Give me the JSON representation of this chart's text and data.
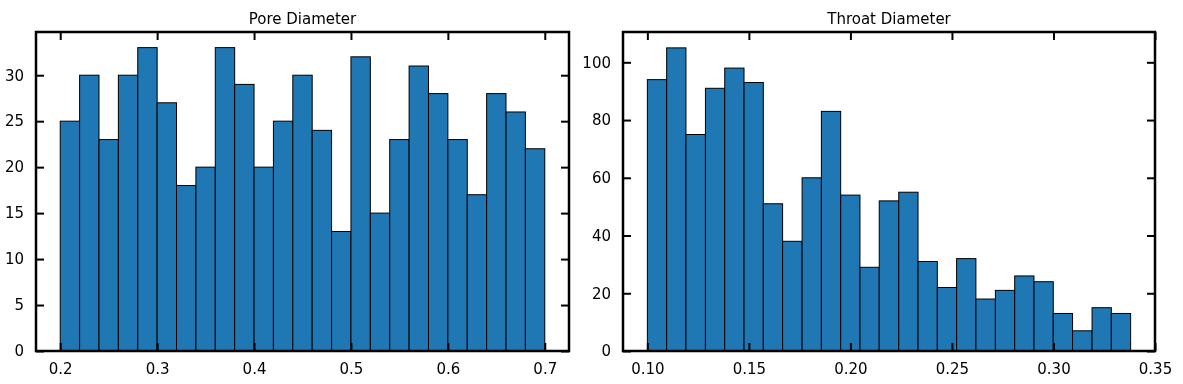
{
  "chart_data": [
    {
      "type": "histogram",
      "title": "Pore Diameter",
      "bins": [
        0.2,
        0.22,
        0.24,
        0.26,
        0.28,
        0.3,
        0.32,
        0.34,
        0.36,
        0.38,
        0.4,
        0.42,
        0.44,
        0.46,
        0.48,
        0.5,
        0.52,
        0.54,
        0.56,
        0.58,
        0.6,
        0.62,
        0.64,
        0.66,
        0.68,
        0.7
      ],
      "values": [
        25,
        30,
        23,
        30,
        33,
        27,
        18,
        20,
        33,
        29,
        20,
        25,
        30,
        24,
        13,
        32,
        15,
        23,
        31,
        28,
        23,
        17,
        28,
        26,
        22
      ],
      "color": "#1f77b4",
      "xlim": [
        0.175,
        0.725
      ],
      "xticks": [
        0.2,
        0.3,
        0.4,
        0.5,
        0.6,
        0.7
      ],
      "ylim": [
        0,
        34.7
      ],
      "yticks": [
        0,
        5,
        10,
        15,
        20,
        25,
        30
      ],
      "grid": false
    },
    {
      "type": "histogram",
      "title": "Throat Diameter",
      "bins": [
        0.1,
        0.1095,
        0.119,
        0.1286,
        0.1381,
        0.1476,
        0.1571,
        0.1666,
        0.1762,
        0.1857,
        0.1952,
        0.2047,
        0.2142,
        0.2238,
        0.2333,
        0.2428,
        0.2523,
        0.2618,
        0.2714,
        0.2809,
        0.2904,
        0.2999,
        0.3094,
        0.319,
        0.3285,
        0.338
      ],
      "values": [
        94,
        105,
        75,
        91,
        98,
        93,
        51,
        38,
        60,
        83,
        54,
        29,
        52,
        55,
        31,
        22,
        32,
        18,
        21,
        26,
        24,
        13,
        7,
        15,
        13
      ],
      "color": "#1f77b4",
      "xlim": [
        0.088,
        0.35
      ],
      "xticks": [
        {
          "value": 0.1,
          "label": "0.10"
        },
        {
          "value": 0.15,
          "label": "0.15"
        },
        {
          "value": 0.2,
          "label": "0.20"
        },
        {
          "value": 0.25,
          "label": "0.25"
        },
        {
          "value": 0.3,
          "label": "0.30"
        },
        {
          "value": 0.35,
          "label": "0.35"
        }
      ],
      "ylim": [
        0,
        110.5
      ],
      "yticks": [
        0,
        20,
        40,
        60,
        80,
        100
      ],
      "grid": false
    }
  ]
}
